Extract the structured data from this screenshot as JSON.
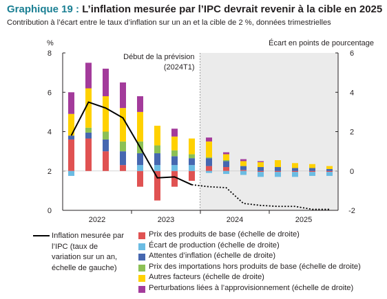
{
  "header": {
    "chart_number": "Graphique 19 :",
    "title": "L’inflation mesurée par l’IPC devrait revenir à la cible en 2025",
    "subtitle": "Contribution à l’écart entre le taux d’inflation sur un an et la cible de 2 %, données trimestrielles"
  },
  "colors": {
    "base": "#e05252",
    "ecart": "#6bbce3",
    "attentes": "#4667b0",
    "importations": "#8cc055",
    "autres": "#ffd100",
    "perturbations": "#a33b9b",
    "line": "#000000",
    "forecast_bg": "#ebebeb"
  },
  "chart_data": {
    "type": "bar",
    "title": "L’inflation mesurée par l’IPC devrait revenir à la cible en 2025",
    "left_axis": {
      "unit": "%",
      "ylim": [
        0,
        8
      ],
      "ticks": [
        "0",
        "2",
        "4",
        "6",
        "8"
      ]
    },
    "right_axis": {
      "unit": "Écart en points de pourcentage",
      "ylim": [
        -2,
        6
      ],
      "ticks": [
        "-2",
        "0",
        "2",
        "4",
        "6"
      ]
    },
    "x_year_labels": [
      "2022",
      "2023",
      "2024",
      "2025"
    ],
    "quarters": [
      "2022T1",
      "2022T2",
      "2022T3",
      "2022T4",
      "2023T1",
      "2023T2",
      "2023T3",
      "2023T4",
      "2024T1",
      "2024T2",
      "2024T3",
      "2024T4",
      "2025T1",
      "2025T2",
      "2025T3",
      "2025T4"
    ],
    "forecast_start_index": 8,
    "forecast_label_line1": "Début de la prévision",
    "forecast_label_line2": "(2024T1)",
    "series": [
      {
        "key": "base",
        "name": "Prix des produits de base (échelle de droite)",
        "values": [
          1.6,
          1.65,
          1.0,
          0.3,
          -0.8,
          -1.5,
          -0.8,
          -0.5,
          0.25,
          0.2,
          0.05,
          -0.05,
          -0.05,
          -0.05,
          -0.05,
          -0.05
        ]
      },
      {
        "key": "ecart",
        "name": "Écart de production (échelle de droite)",
        "values": [
          -0.25,
          0.0,
          0.0,
          0.0,
          0.3,
          0.3,
          0.3,
          0.3,
          -0.1,
          -0.15,
          -0.2,
          -0.25,
          -0.25,
          -0.25,
          -0.2,
          -0.2
        ]
      },
      {
        "key": "attentes",
        "name": "Attentes d’inflation (échelle de droite)",
        "values": [
          0.2,
          0.3,
          0.6,
          0.7,
          0.6,
          0.6,
          0.45,
          0.35,
          0.4,
          0.3,
          0.2,
          0.2,
          0.2,
          0.15,
          0.15,
          0.1
        ]
      },
      {
        "key": "importations",
        "name": "Prix des importations hors produits de base (échelle de droite)",
        "values": [
          0.0,
          0.25,
          0.4,
          0.5,
          0.6,
          0.4,
          0.3,
          0.2,
          0.05,
          0.05,
          0.0,
          0.0,
          0.0,
          0.0,
          0.0,
          0.0
        ]
      },
      {
        "key": "autres",
        "name": "Autres facteurs (échelle de droite)",
        "values": [
          1.1,
          2.0,
          1.8,
          1.7,
          1.5,
          1.0,
          0.7,
          0.8,
          0.8,
          0.3,
          0.25,
          0.25,
          0.35,
          0.25,
          0.2,
          0.15
        ]
      },
      {
        "key": "perturbations",
        "name": "Perturbations liées à l’approvisionnement (échelle de droite)",
        "values": [
          1.1,
          1.3,
          1.4,
          1.3,
          0.8,
          0.0,
          0.4,
          0.0,
          0.2,
          0.1,
          0.1,
          0.05,
          0.0,
          0.0,
          0.0,
          0.0
        ]
      }
    ],
    "line": {
      "name": "Inflation mesurée par l’IPC (taux de variation sur un an, échelle de gauche)",
      "values": [
        3.8,
        5.5,
        5.2,
        4.7,
        3.2,
        1.65,
        1.7,
        1.3,
        1.2,
        1.15,
        0.35,
        0.25,
        0.2,
        0.2,
        0.05,
        0.05
      ]
    }
  },
  "legend": {
    "line_label": "Inflation mesurée par l’IPC (taux de variation sur un an, échelle de gauche)"
  }
}
